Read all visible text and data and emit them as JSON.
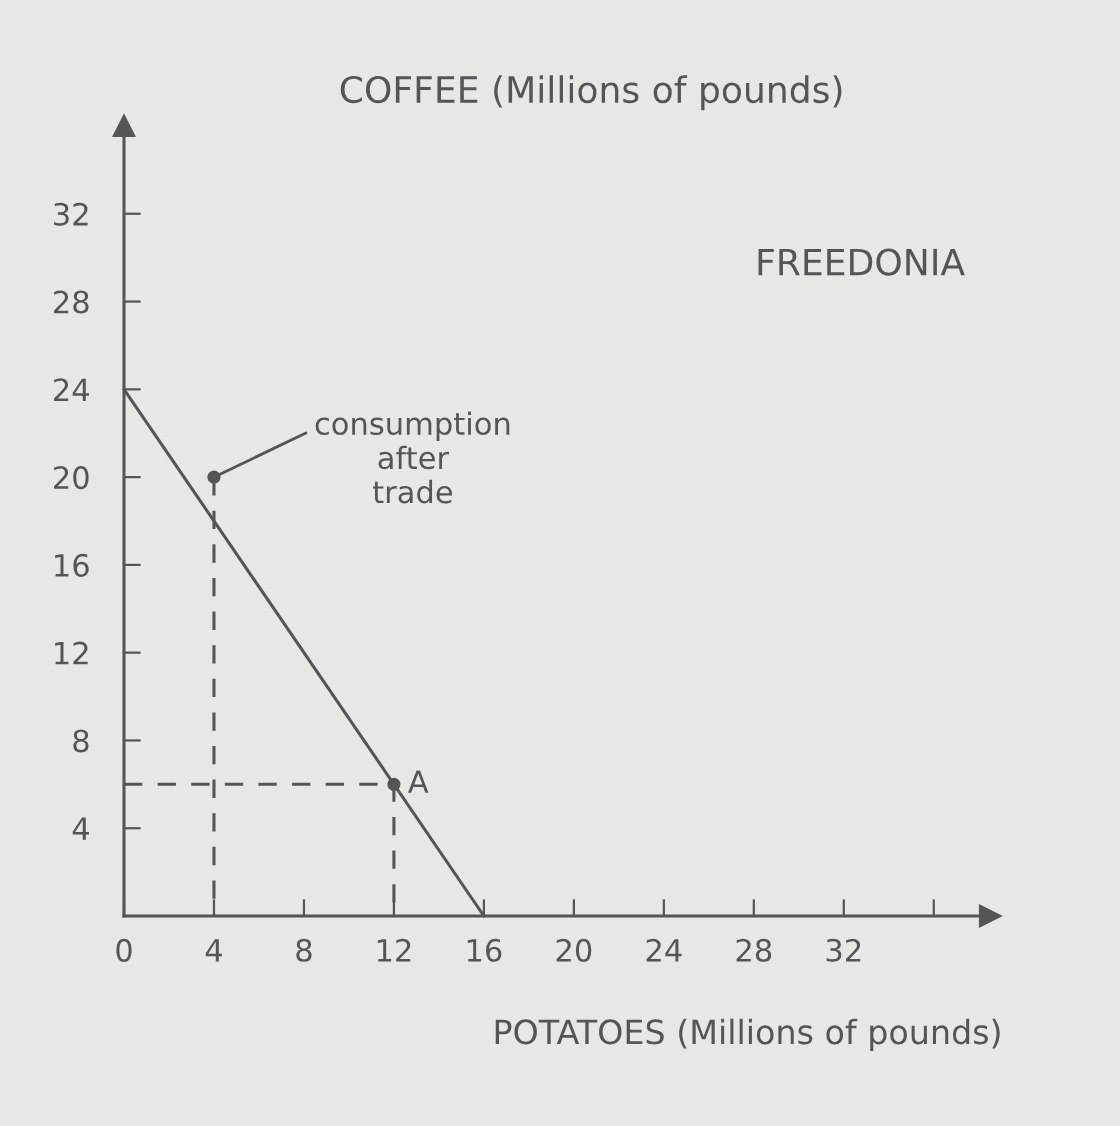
{
  "chart_data": {
    "type": "line",
    "title": "FREEDONIA",
    "xlabel": "POTATOES (Millions of pounds)",
    "ylabel": "COFFEE (Millions of pounds)",
    "series": [
      {
        "color": "#555555",
        "line_style": "solid",
        "x": [
          0,
          16
        ],
        "values": [
          24,
          0
        ]
      },
      {
        "type": "line",
        "color": "#555555",
        "line_style": "dashed",
        "x": [
          0,
          12,
          12
        ],
        "values": [
          6,
          6,
          0
        ]
      },
      {
        "type": "line",
        "color": "#555555",
        "line_style": "dashed",
        "x": [
          4,
          4
        ],
        "values": [
          20,
          0
        ]
      },
      {
        "type": "scatter",
        "color": "#555555",
        "marker": "circle",
        "x": [
          12,
          4
        ],
        "values": [
          6,
          20
        ]
      }
    ],
    "annotations": [
      {
        "text": "A",
        "x": 12,
        "y": 6
      },
      {
        "text": "consumption\nafter\ntrade",
        "x": 4,
        "y": 20
      }
    ],
    "xlim": [
      0,
      38.5
    ],
    "ylim": [
      0,
      36
    ],
    "xticks": [
      0,
      4,
      8,
      12,
      16,
      20,
      24,
      28,
      32,
      {
        "value": 36,
        "label": null
      }
    ],
    "yticks": [
      4,
      8,
      12,
      16,
      20,
      24,
      28,
      32
    ],
    "grid": false,
    "legend": false
  }
}
